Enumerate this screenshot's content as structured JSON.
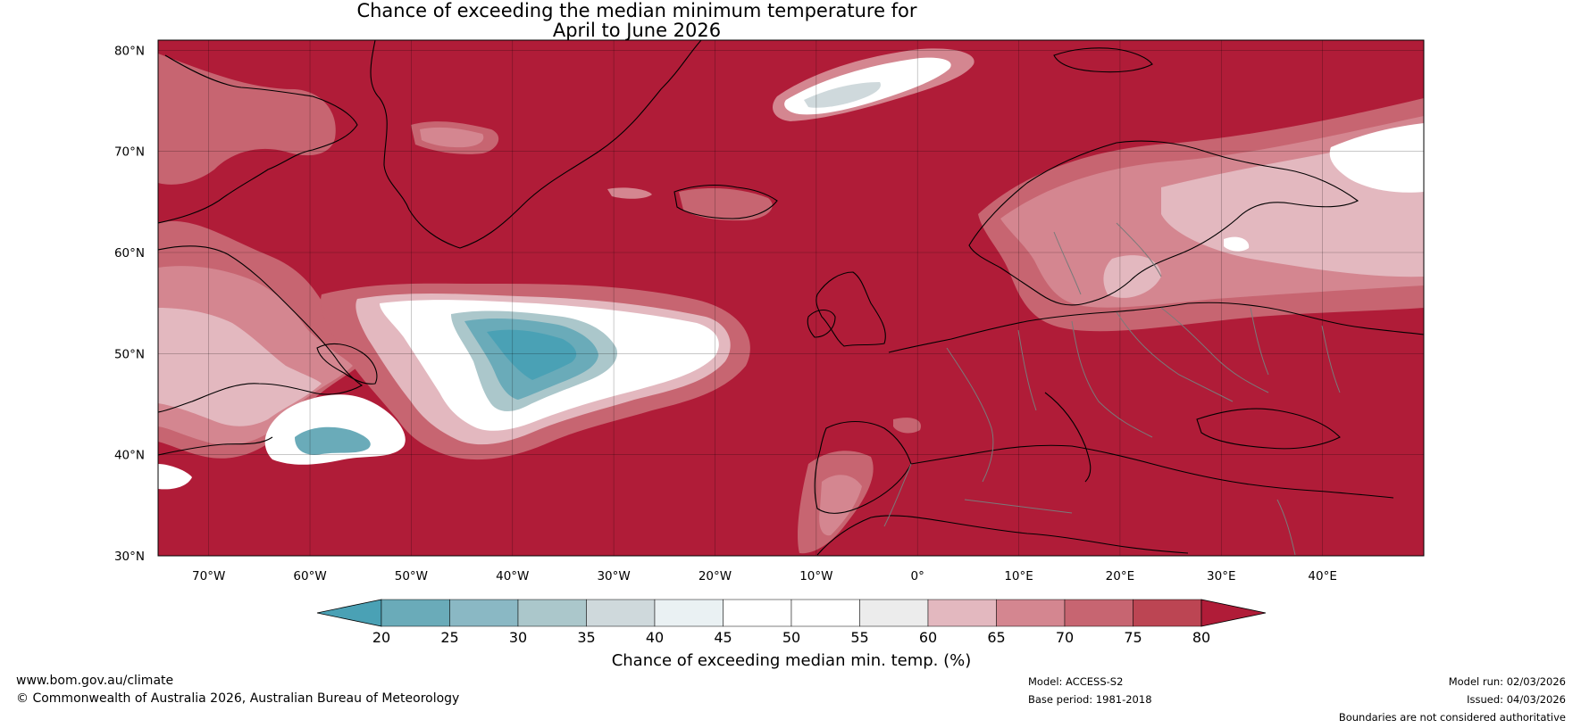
{
  "title": {
    "line1": "Chance of exceeding the median minimum temperature for",
    "line2": "April to June 2026"
  },
  "map": {
    "lat_ticks": [
      "80°N",
      "70°N",
      "60°N",
      "50°N",
      "40°N",
      "30°N"
    ],
    "lon_ticks": [
      "70°W",
      "60°W",
      "50°W",
      "40°W",
      "30°W",
      "20°W",
      "10°W",
      "0°",
      "10°E",
      "20°E",
      "30°E",
      "40°E"
    ],
    "lat_range": [
      30,
      81
    ],
    "lon_range": [
      -75,
      50
    ],
    "background_color": "#b01c38"
  },
  "colorbar": {
    "label": "Chance of exceeding median min. temp. (%)",
    "ticks": [
      "20",
      "25",
      "30",
      "35",
      "40",
      "45",
      "50",
      "55",
      "60",
      "65",
      "70",
      "75",
      "80"
    ],
    "colors": [
      "#4aa1b5",
      "#6aabb9",
      "#8ab8c4",
      "#abc7cb",
      "#cfd9dc",
      "#eaf1f3",
      "#ffffff",
      "#ffffff",
      "#ececec",
      "#e3b8bf",
      "#d48690",
      "#c76571",
      "#bc4553"
    ],
    "under_color": "#4aa1b5",
    "over_color": "#b01c38"
  },
  "footer": {
    "website": "www.bom.gov.au/climate",
    "copyright": "© Commonwealth of Australia 2026, Australian Bureau of Meteorology",
    "model": "Model: ACCESS-S2",
    "base_period": "Base period: 1981-2018",
    "model_run": "Model run: 02/03/2026",
    "issued": "Issued: 04/03/2026",
    "disclaimer": "Boundaries are not considered authoritative"
  }
}
